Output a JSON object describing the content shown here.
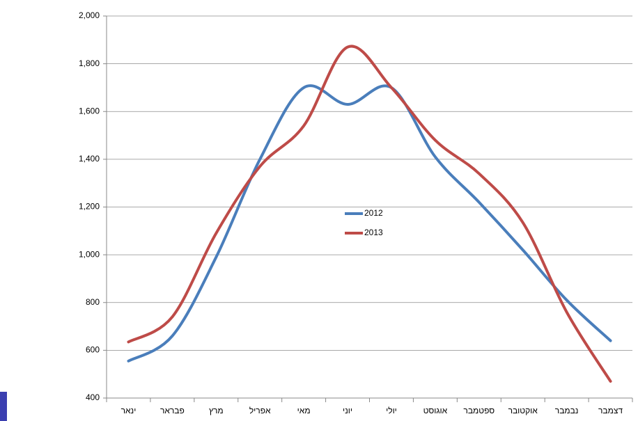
{
  "chart_data": {
    "type": "line",
    "categories": [
      "ינאר",
      "פבראר",
      "מרץ",
      "אפריל",
      "מאי",
      "יוני",
      "יולי",
      "אוגוסט",
      "ספטמבר",
      "אוקטובר",
      "נבמבר",
      "דצמבר"
    ],
    "series": [
      {
        "name": "2012",
        "color": "#4a7ebb",
        "values": [
          555,
          660,
          990,
          1400,
          1700,
          1630,
          1700,
          1410,
          1220,
          1020,
          810,
          640
        ]
      },
      {
        "name": "2013",
        "color": "#be4b48",
        "values": [
          635,
          740,
          1090,
          1370,
          1540,
          1870,
          1700,
          1480,
          1340,
          1135,
          760,
          470
        ]
      }
    ],
    "ylim": [
      400,
      2000
    ],
    "yticks": [
      400,
      600,
      800,
      {
        "value": 1000,
        "label": "1,000"
      },
      {
        "value": 1200,
        "label": "1,200"
      },
      {
        "value": 1400,
        "label": "1,400"
      },
      {
        "value": 1600,
        "label": "1,600"
      },
      {
        "value": 1800,
        "label": "1,800"
      },
      {
        "value": 2000,
        "label": "2,000"
      }
    ],
    "grid": true,
    "smooth": true,
    "legend": "center"
  }
}
